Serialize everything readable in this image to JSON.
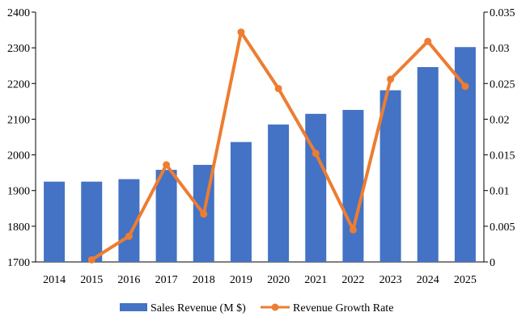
{
  "chart_data": {
    "type": "bar",
    "categories": [
      "2014",
      "2015",
      "2016",
      "2017",
      "2018",
      "2019",
      "2020",
      "2021",
      "2022",
      "2023",
      "2024",
      "2025"
    ],
    "series": [
      {
        "name": "Sales Revenue (M $)",
        "type": "bar",
        "axis": "left",
        "color": "#4472C4",
        "values": [
          1925,
          1925,
          1932,
          1958,
          1972,
          2036,
          2085,
          2115,
          2126,
          2181,
          2246,
          2302
        ]
      },
      {
        "name": "Revenue Growth Rate",
        "type": "line",
        "axis": "right",
        "color": "#ED7D31",
        "values": [
          null,
          0.0003,
          0.0036,
          0.0136,
          0.0067,
          0.0322,
          0.0243,
          0.0152,
          0.0045,
          0.0256,
          0.0309,
          0.0246
        ]
      }
    ],
    "y_left": {
      "ylim": [
        1700,
        2400
      ],
      "ticks": [
        "1700",
        "1800",
        "1900",
        "2000",
        "2100",
        "2200",
        "2300",
        "2400"
      ]
    },
    "y_right": {
      "ylim": [
        0,
        0.035
      ],
      "ticks": [
        "0",
        "0.005",
        "0.01",
        "0.015",
        "0.02",
        "0.025",
        "0.03",
        "0.035"
      ]
    },
    "grid": false,
    "legend_position": "bottom"
  }
}
